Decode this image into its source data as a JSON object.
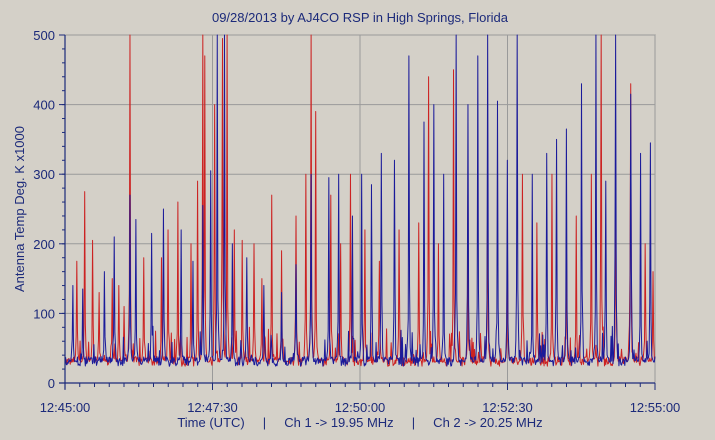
{
  "chart_data": {
    "type": "line",
    "title": "09/28/2013  by  AJ4CO RSP  in  High Springs, Florida",
    "ylabel": "Antenna Temp Deg. K x1000",
    "xlabel": "Time (UTC)     |     Ch 1 -> 19.95 MHz     |     Ch 2 -> 20.25 MHz",
    "xlim": [
      "12:45:00",
      "12:55:00"
    ],
    "ylim": [
      0,
      500
    ],
    "x_ticks": [
      "12:45:00",
      "12:47:30",
      "12:50:00",
      "12:52:30",
      "12:55:00"
    ],
    "y_ticks": [
      "0",
      "100",
      "200",
      "300",
      "400",
      "500"
    ],
    "grid": true,
    "legend": "none",
    "baseline_approx": 30,
    "series": [
      {
        "color": "#cc2222",
        "peaks": [
          {
            "t": "12:45:12",
            "v": 175
          },
          {
            "t": "12:45:20",
            "v": 275
          },
          {
            "t": "12:45:28",
            "v": 205
          },
          {
            "t": "12:45:35",
            "v": 130
          },
          {
            "t": "12:45:48",
            "v": 150
          },
          {
            "t": "12:45:55",
            "v": 140
          },
          {
            "t": "12:46:00",
            "v": 110
          },
          {
            "t": "12:46:06",
            "v": 500
          },
          {
            "t": "12:46:20",
            "v": 180
          },
          {
            "t": "12:46:38",
            "v": 180
          },
          {
            "t": "12:46:45",
            "v": 220
          },
          {
            "t": "12:46:55",
            "v": 260
          },
          {
            "t": "12:47:08",
            "v": 200
          },
          {
            "t": "12:47:15",
            "v": 290
          },
          {
            "t": "12:47:20",
            "v": 500
          },
          {
            "t": "12:47:22",
            "v": 470
          },
          {
            "t": "12:47:32",
            "v": 400
          },
          {
            "t": "12:47:40",
            "v": 495
          },
          {
            "t": "12:47:45",
            "v": 500
          },
          {
            "t": "12:47:52",
            "v": 220
          },
          {
            "t": "12:48:00",
            "v": 205
          },
          {
            "t": "12:48:12",
            "v": 200
          },
          {
            "t": "12:48:20",
            "v": 150
          },
          {
            "t": "12:48:30",
            "v": 270
          },
          {
            "t": "12:48:40",
            "v": 190
          },
          {
            "t": "12:48:55",
            "v": 240
          },
          {
            "t": "12:49:05",
            "v": 300
          },
          {
            "t": "12:49:10",
            "v": 500
          },
          {
            "t": "12:49:15",
            "v": 390
          },
          {
            "t": "12:49:30",
            "v": 270
          },
          {
            "t": "12:49:40",
            "v": 200
          },
          {
            "t": "12:49:50",
            "v": 300
          },
          {
            "t": "12:50:05",
            "v": 220
          },
          {
            "t": "12:50:20",
            "v": 175
          },
          {
            "t": "12:50:40",
            "v": 220
          },
          {
            "t": "12:51:00",
            "v": 230
          },
          {
            "t": "12:51:10",
            "v": 440
          },
          {
            "t": "12:51:20",
            "v": 200
          },
          {
            "t": "12:51:35",
            "v": 450
          },
          {
            "t": "12:51:50",
            "v": 270
          },
          {
            "t": "12:52:10",
            "v": 270
          },
          {
            "t": "12:52:30",
            "v": 220
          },
          {
            "t": "12:52:45",
            "v": 300
          },
          {
            "t": "12:53:00",
            "v": 230
          },
          {
            "t": "12:53:15",
            "v": 300
          },
          {
            "t": "12:53:30",
            "v": 210
          },
          {
            "t": "12:53:40",
            "v": 240
          },
          {
            "t": "12:53:55",
            "v": 300
          },
          {
            "t": "12:54:05",
            "v": 500
          },
          {
            "t": "12:54:20",
            "v": 300
          },
          {
            "t": "12:54:35",
            "v": 430
          },
          {
            "t": "12:54:50",
            "v": 200
          },
          {
            "t": "12:54:58",
            "v": 160
          }
        ]
      },
      {
        "color": "#1a1a9a",
        "peaks": [
          {
            "t": "12:45:08",
            "v": 140
          },
          {
            "t": "12:45:18",
            "v": 135
          },
          {
            "t": "12:45:40",
            "v": 160
          },
          {
            "t": "12:45:50",
            "v": 210
          },
          {
            "t": "12:46:06",
            "v": 270
          },
          {
            "t": "12:46:12",
            "v": 235
          },
          {
            "t": "12:46:28",
            "v": 215
          },
          {
            "t": "12:46:40",
            "v": 250
          },
          {
            "t": "12:46:58",
            "v": 220
          },
          {
            "t": "12:47:10",
            "v": 175
          },
          {
            "t": "12:47:20",
            "v": 255
          },
          {
            "t": "12:47:28",
            "v": 305
          },
          {
            "t": "12:47:35",
            "v": 500
          },
          {
            "t": "12:47:42",
            "v": 500
          },
          {
            "t": "12:47:50",
            "v": 200
          },
          {
            "t": "12:48:05",
            "v": 180
          },
          {
            "t": "12:48:22",
            "v": 140
          },
          {
            "t": "12:48:40",
            "v": 130
          },
          {
            "t": "12:48:55",
            "v": 170
          },
          {
            "t": "12:49:10",
            "v": 300
          },
          {
            "t": "12:49:28",
            "v": 295
          },
          {
            "t": "12:49:38",
            "v": 300
          },
          {
            "t": "12:49:52",
            "v": 240
          },
          {
            "t": "12:50:02",
            "v": 300
          },
          {
            "t": "12:50:12",
            "v": 285
          },
          {
            "t": "12:50:22",
            "v": 330
          },
          {
            "t": "12:50:35",
            "v": 320
          },
          {
            "t": "12:50:50",
            "v": 470
          },
          {
            "t": "12:51:05",
            "v": 375
          },
          {
            "t": "12:51:15",
            "v": 400
          },
          {
            "t": "12:51:25",
            "v": 300
          },
          {
            "t": "12:51:38",
            "v": 500
          },
          {
            "t": "12:51:50",
            "v": 400
          },
          {
            "t": "12:52:00",
            "v": 470
          },
          {
            "t": "12:52:10",
            "v": 500
          },
          {
            "t": "12:52:20",
            "v": 405
          },
          {
            "t": "12:52:30",
            "v": 320
          },
          {
            "t": "12:52:40",
            "v": 500
          },
          {
            "t": "12:52:55",
            "v": 300
          },
          {
            "t": "12:53:10",
            "v": 330
          },
          {
            "t": "12:53:20",
            "v": 350
          },
          {
            "t": "12:53:30",
            "v": 365
          },
          {
            "t": "12:53:45",
            "v": 430
          },
          {
            "t": "12:54:00",
            "v": 500
          },
          {
            "t": "12:54:10",
            "v": 290
          },
          {
            "t": "12:54:20",
            "v": 500
          },
          {
            "t": "12:54:35",
            "v": 415
          },
          {
            "t": "12:54:45",
            "v": 330
          },
          {
            "t": "12:54:55",
            "v": 345
          }
        ]
      }
    ]
  }
}
